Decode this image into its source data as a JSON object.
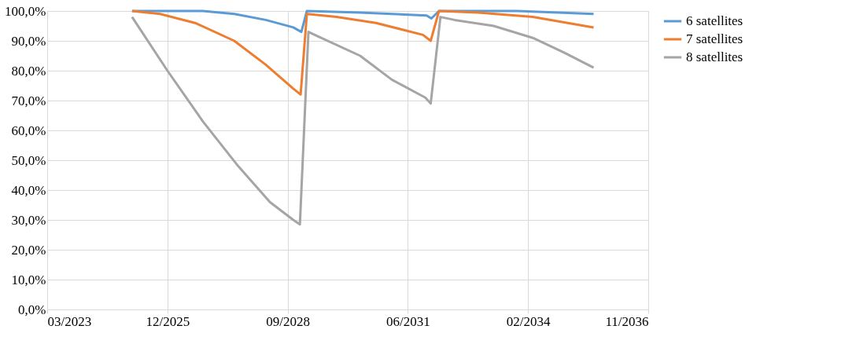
{
  "chart_data": {
    "type": "line",
    "xlim": [
      "2023-03-16",
      "2036-11-22"
    ],
    "xticks": [
      {
        "value": "2023-03-16",
        "label": "03/2023"
      },
      {
        "value": "2025-12-10",
        "label": "12/2025"
      },
      {
        "value": "2028-09-05",
        "label": "09/2028"
      },
      {
        "value": "2031-06-02",
        "label": "06/2031"
      },
      {
        "value": "2034-02-26",
        "label": "02/2034"
      },
      {
        "value": "2036-11-22",
        "label": "11/2036"
      }
    ],
    "ylim": [
      0,
      100
    ],
    "yticks": [
      {
        "value": 0,
        "label": "0,0%"
      },
      {
        "value": 10,
        "label": "10,0%"
      },
      {
        "value": 20,
        "label": "20,0%"
      },
      {
        "value": 30,
        "label": "30,0%"
      },
      {
        "value": 40,
        "label": "40,0%"
      },
      {
        "value": 50,
        "label": "50,0%"
      },
      {
        "value": 60,
        "label": "60,0%"
      },
      {
        "value": 70,
        "label": "70,0%"
      },
      {
        "value": 80,
        "label": "80,0%"
      },
      {
        "value": 90,
        "label": "90,0%"
      },
      {
        "value": 100,
        "label": "100,0%"
      }
    ],
    "grid": true,
    "legend": "right",
    "marker": "none",
    "line_style": "solid",
    "series": [
      {
        "name": "6 satellites",
        "color": "#5b9bd5",
        "x": [
          "2025-02-19",
          "2026-10-01",
          "2027-06-19",
          "2028-03-07",
          "2028-10-22",
          "2028-12-28",
          "2029-02-12",
          "2030-05-01",
          "2031-11-05",
          "2031-12-15",
          "2032-02-16",
          "2033-12-01",
          "2035-08-25"
        ],
        "values": [
          100,
          100,
          99,
          97,
          94.5,
          93,
          100,
          99.5,
          98.5,
          97.5,
          100,
          100,
          99
        ]
      },
      {
        "name": "7 satellites",
        "color": "#ed7d31",
        "x": [
          "2025-02-19",
          "2025-10-10",
          "2026-07-28",
          "2027-06-19",
          "2028-03-07",
          "2028-10-22",
          "2028-12-22",
          "2029-02-12",
          "2029-10-16",
          "2030-09-10",
          "2031-10-05",
          "2031-12-09",
          "2032-02-16",
          "2033-01-06",
          "2034-04-06",
          "2035-08-25"
        ],
        "values": [
          100,
          99,
          96,
          90,
          82,
          74,
          72,
          99,
          98,
          96,
          92,
          90,
          100,
          99.5,
          98,
          94.5
        ]
      },
      {
        "name": "8 satellites",
        "color": "#a5a5a5",
        "x": [
          "2025-02-19",
          "2025-12-10",
          "2026-10-01",
          "2027-07-22",
          "2028-04-10",
          "2028-10-22",
          "2028-12-16",
          "2029-02-25",
          "2029-06-10",
          "2030-05-01",
          "2031-01-19",
          "2031-10-25",
          "2031-12-09",
          "2032-02-28",
          "2032-06-25",
          "2033-05-16",
          "2034-04-06",
          "2034-12-25",
          "2035-08-25"
        ],
        "values": [
          98,
          80,
          63,
          48,
          36,
          30,
          28.5,
          93,
          91,
          85,
          77,
          71,
          69,
          98,
          97,
          95,
          91,
          86,
          81
        ]
      }
    ]
  }
}
